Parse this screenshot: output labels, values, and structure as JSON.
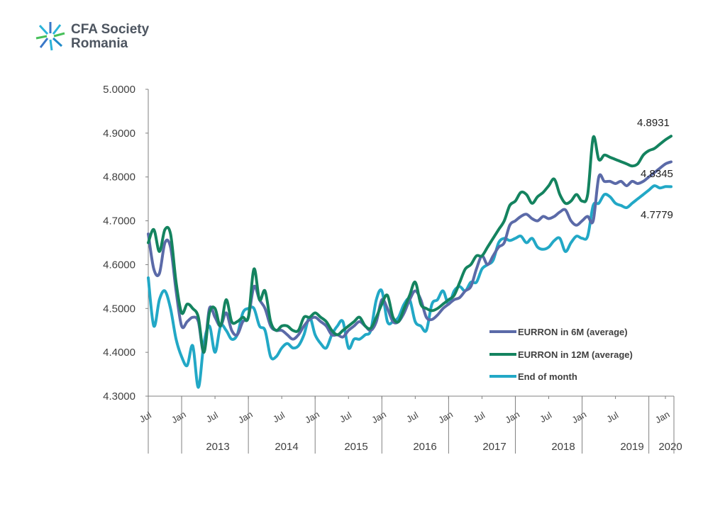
{
  "logo": {
    "name_line1": "CFA Society",
    "name_line2": "Romania",
    "icon": "cfa-starburst-icon"
  },
  "colors": {
    "eurron_6m": "#5b6aa8",
    "eurron_12m": "#14835f",
    "end_of_month": "#22a8c6",
    "axis": "#808080"
  },
  "chart_data": {
    "type": "line",
    "title": "",
    "xlabel": "",
    "ylabel": "",
    "ylim": [
      4.3,
      5.0
    ],
    "y_ticks": [
      "5.0000",
      "4.9000",
      "4.8000",
      "4.7000",
      "4.6000",
      "4.5000",
      "4.4000",
      "4.3000"
    ],
    "x_tick_labels": [
      "Jul",
      "Jan",
      "Jul",
      "Jan",
      "Jul",
      "Jan",
      "Jul",
      "Jan",
      "Jul",
      "Jan",
      "Jul",
      "Jan",
      "Jul",
      "Jan",
      "Jul",
      "Jan"
    ],
    "year_labels": [
      "2013",
      "2014",
      "2015",
      "2016",
      "2017",
      "2018",
      "2019",
      "2020"
    ],
    "x_start": "2012-07",
    "x_end": "2020-01",
    "grid": false,
    "legend_position": "right-middle",
    "series": [
      {
        "name": "EURRON in 6M (average)",
        "color": "#5b6aa8",
        "values": [
          4.67,
          4.59,
          4.58,
          4.65,
          4.64,
          4.54,
          4.46,
          4.47,
          4.48,
          4.47,
          4.4,
          4.5,
          4.48,
          4.46,
          4.49,
          4.45,
          4.44,
          4.47,
          4.48,
          4.55,
          4.52,
          4.5,
          4.46,
          4.45,
          4.45,
          4.44,
          4.43,
          4.44,
          4.46,
          4.475,
          4.48,
          4.47,
          4.46,
          4.44,
          4.44,
          4.435,
          4.45,
          4.46,
          4.47,
          4.46,
          4.45,
          4.47,
          4.52,
          4.5,
          4.47,
          4.47,
          4.49,
          4.52,
          4.54,
          4.52,
          4.48,
          4.475,
          4.485,
          4.5,
          4.51,
          4.52,
          4.525,
          4.54,
          4.55,
          4.59,
          4.62,
          4.6,
          4.62,
          4.64,
          4.65,
          4.69,
          4.7,
          4.71,
          4.715,
          4.705,
          4.7,
          4.71,
          4.705,
          4.71,
          4.72,
          4.725,
          4.7,
          4.69,
          4.7,
          4.71,
          4.7,
          4.8,
          4.79,
          4.79,
          4.785,
          4.79,
          4.78,
          4.79,
          4.785,
          4.79,
          4.8,
          4.81,
          4.82,
          4.83,
          4.8345
        ]
      },
      {
        "name": "EURRON in 12M (average)",
        "color": "#14835f",
        "values": [
          4.65,
          4.68,
          4.63,
          4.68,
          4.67,
          4.56,
          4.49,
          4.51,
          4.5,
          4.48,
          4.4,
          4.49,
          4.5,
          4.46,
          4.52,
          4.47,
          4.47,
          4.48,
          4.48,
          4.59,
          4.52,
          4.54,
          4.47,
          4.45,
          4.46,
          4.46,
          4.45,
          4.45,
          4.48,
          4.48,
          4.49,
          4.48,
          4.47,
          4.45,
          4.44,
          4.45,
          4.46,
          4.47,
          4.48,
          4.46,
          4.455,
          4.48,
          4.51,
          4.53,
          4.48,
          4.47,
          4.5,
          4.53,
          4.56,
          4.51,
          4.5,
          4.495,
          4.5,
          4.51,
          4.52,
          4.53,
          4.56,
          4.59,
          4.6,
          4.62,
          4.62,
          4.64,
          4.66,
          4.68,
          4.7,
          4.735,
          4.745,
          4.765,
          4.76,
          4.74,
          4.755,
          4.765,
          4.78,
          4.795,
          4.76,
          4.74,
          4.745,
          4.76,
          4.745,
          4.76,
          4.89,
          4.84,
          4.85,
          4.845,
          4.84,
          4.835,
          4.83,
          4.825,
          4.83,
          4.85,
          4.86,
          4.865,
          4.875,
          4.885,
          4.8931
        ]
      },
      {
        "name": "End of month",
        "color": "#22a8c6",
        "values": [
          4.57,
          4.46,
          4.52,
          4.54,
          4.5,
          4.43,
          4.39,
          4.37,
          4.415,
          4.32,
          4.42,
          4.46,
          4.4,
          4.46,
          4.45,
          4.43,
          4.44,
          4.49,
          4.5,
          4.5,
          4.46,
          4.45,
          4.39,
          4.39,
          4.41,
          4.42,
          4.41,
          4.415,
          4.44,
          4.48,
          4.44,
          4.42,
          4.41,
          4.44,
          4.46,
          4.47,
          4.41,
          4.43,
          4.43,
          4.44,
          4.45,
          4.52,
          4.54,
          4.47,
          4.47,
          4.48,
          4.51,
          4.52,
          4.47,
          4.46,
          4.45,
          4.51,
          4.52,
          4.54,
          4.51,
          4.54,
          4.55,
          4.54,
          4.56,
          4.56,
          4.59,
          4.6,
          4.61,
          4.65,
          4.66,
          4.655,
          4.66,
          4.665,
          4.65,
          4.66,
          4.64,
          4.635,
          4.64,
          4.655,
          4.66,
          4.63,
          4.65,
          4.665,
          4.66,
          4.665,
          4.735,
          4.74,
          4.76,
          4.755,
          4.74,
          4.735,
          4.73,
          4.74,
          4.75,
          4.76,
          4.77,
          4.78,
          4.775,
          4.778,
          4.7779
        ]
      }
    ],
    "annotations": [
      "4.8931",
      "4.8345",
      "4.7779"
    ]
  }
}
